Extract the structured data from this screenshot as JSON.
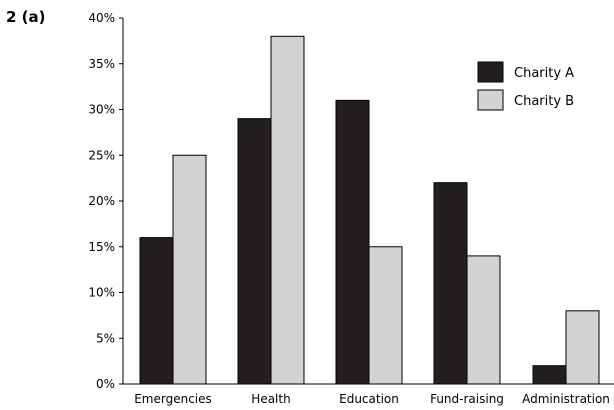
{
  "question_label": "2 (a)",
  "chart_data": {
    "type": "bar",
    "categories": [
      "Emergencies",
      "Health",
      "Education",
      "Fund-raising",
      "Administration"
    ],
    "series": [
      {
        "name": "Charity A",
        "values": [
          16,
          29,
          31,
          22,
          2
        ],
        "color": "#231f20"
      },
      {
        "name": "Charity B",
        "values": [
          25,
          38,
          15,
          14,
          8
        ],
        "color": "#d1d3d4"
      }
    ],
    "yticks": [
      "0%",
      "5%",
      "10%",
      "15%",
      "20%",
      "25%",
      "30%",
      "35%",
      "40%"
    ],
    "ylim": [
      0,
      40
    ],
    "grid": false,
    "legend_position": "top-right"
  }
}
